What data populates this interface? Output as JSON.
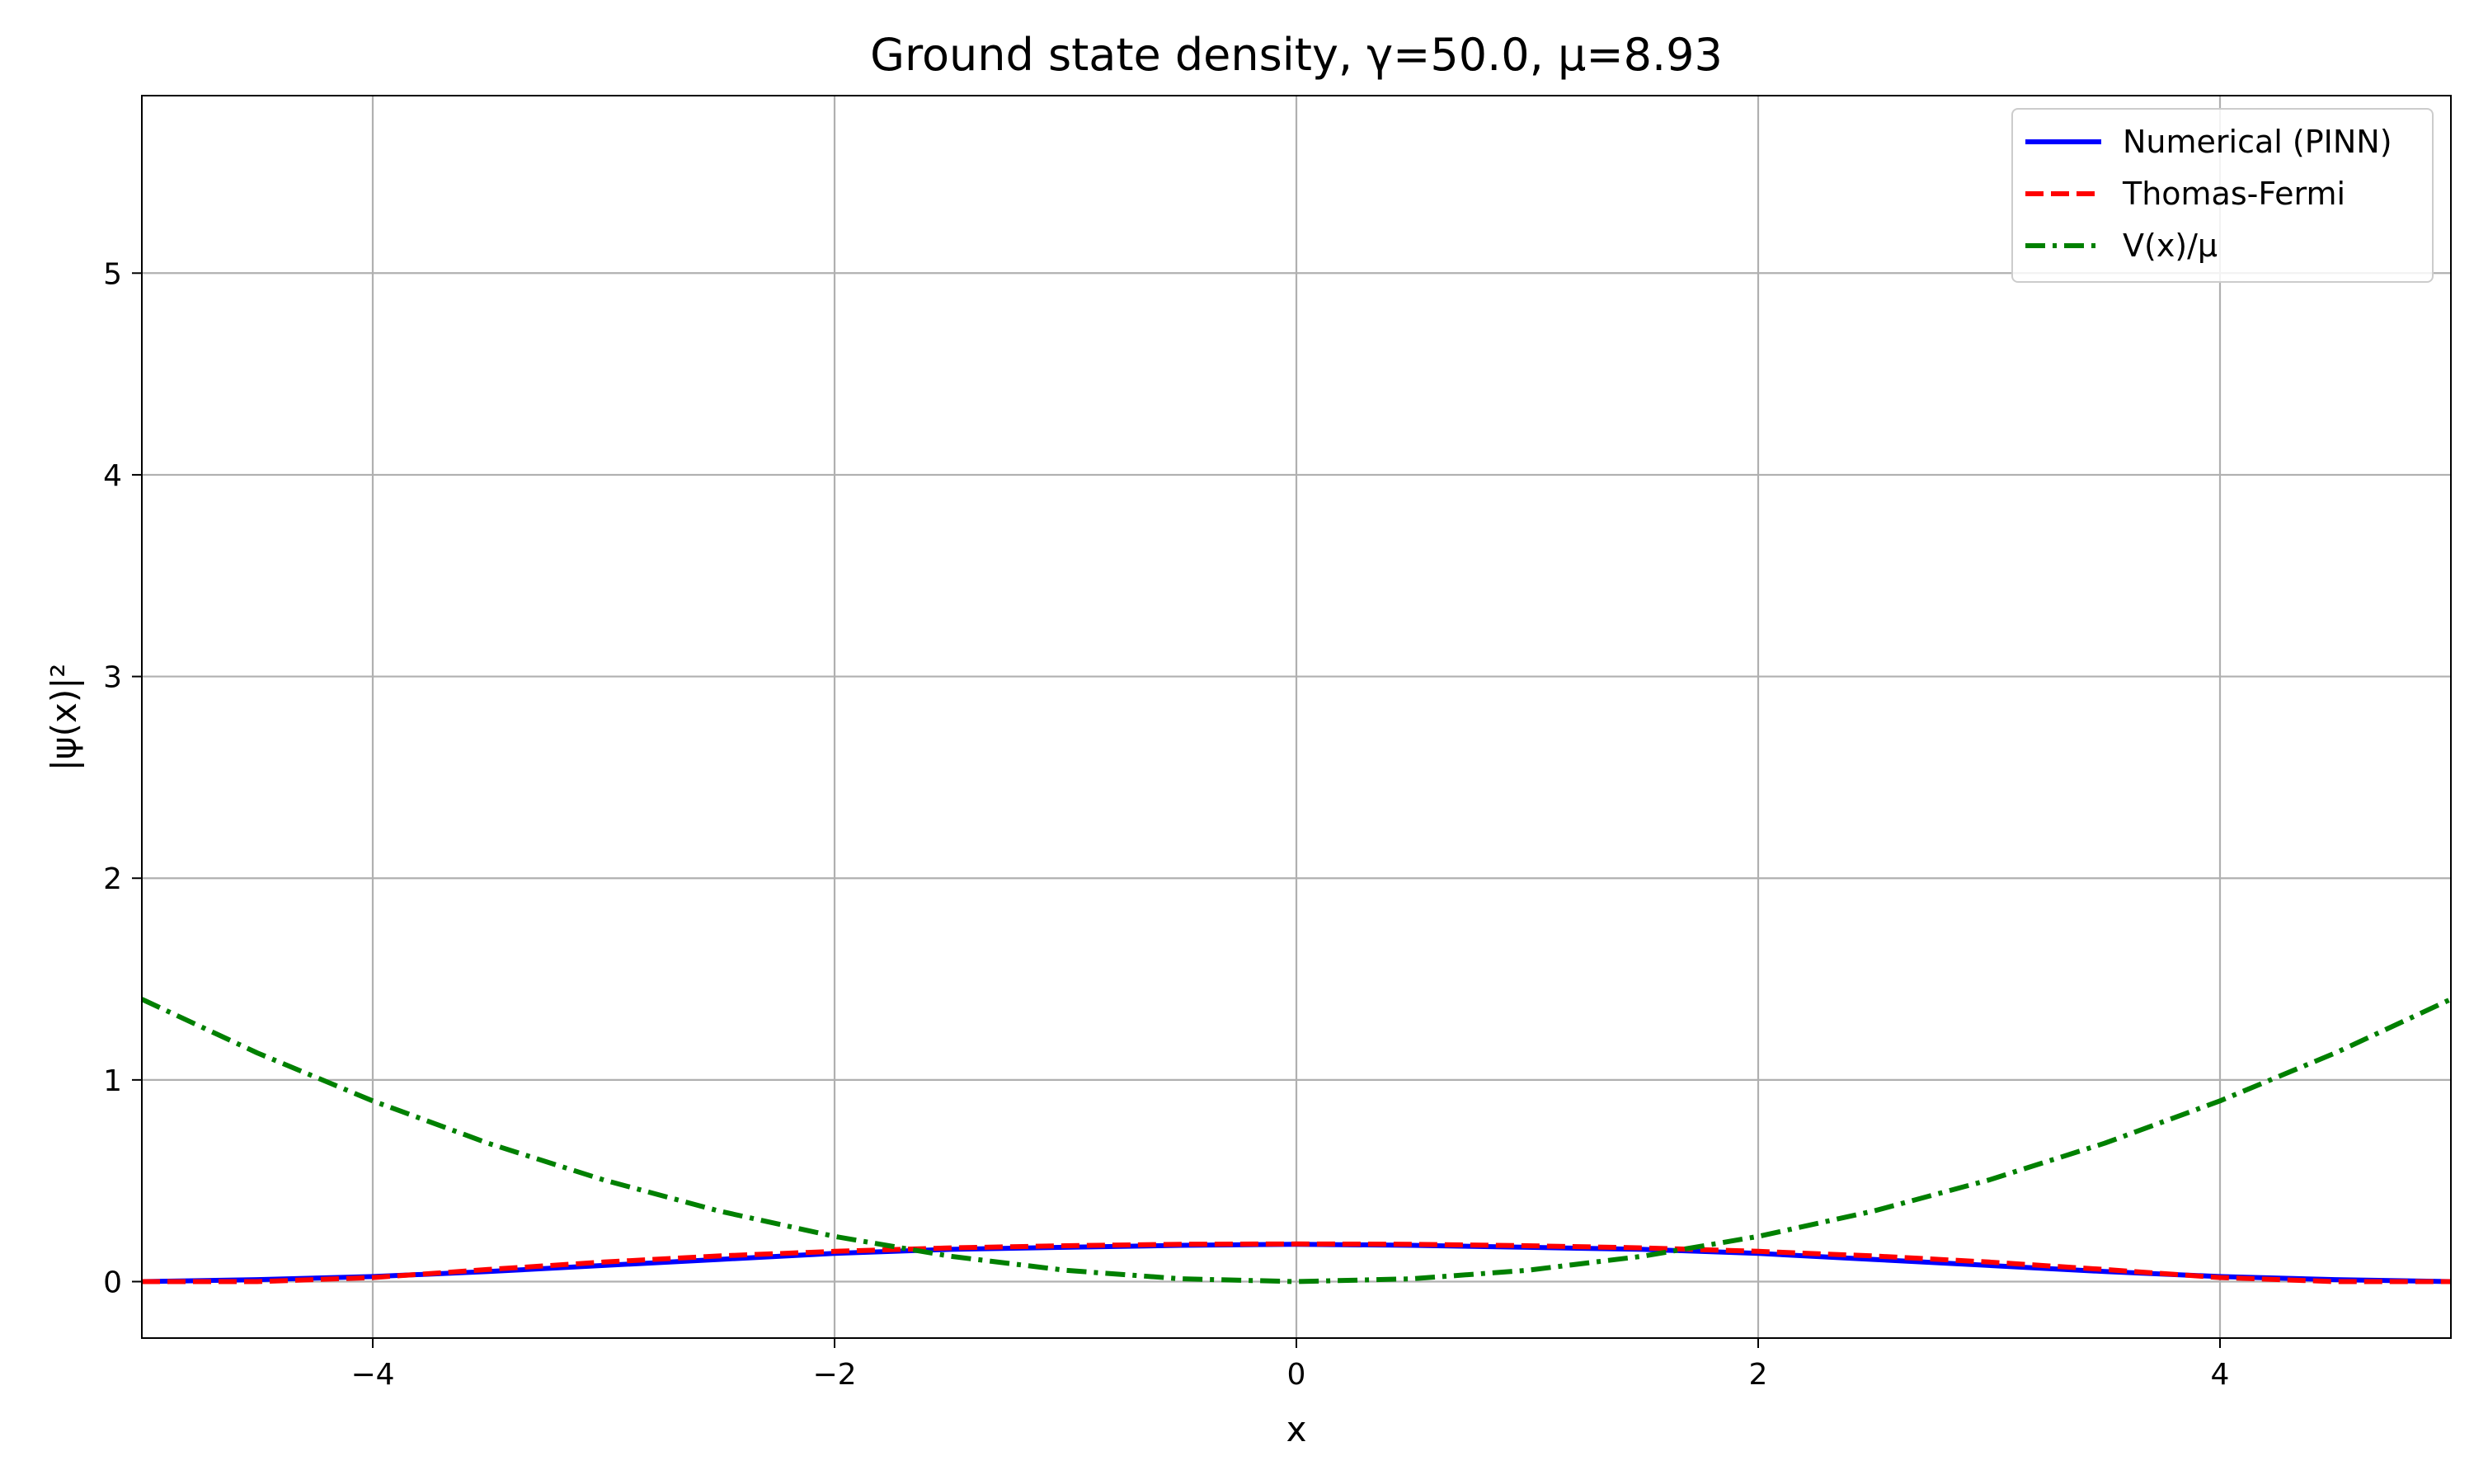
{
  "chart_data": {
    "type": "line",
    "title": "Ground state density, γ=50.0, μ=8.93",
    "xlabel": "x",
    "ylabel": "|ψ(x)|²",
    "xlim": [
      -5,
      5
    ],
    "ylim": [
      -0.28,
      5.88
    ],
    "x_ticks": [
      -4,
      -2,
      0,
      2,
      4
    ],
    "x_tick_labels": [
      "−4",
      "−2",
      "0",
      "2",
      "4"
    ],
    "y_ticks": [
      0,
      1,
      2,
      3,
      4,
      5
    ],
    "y_tick_labels": [
      "0",
      "1",
      "2",
      "3",
      "4",
      "5"
    ],
    "grid": true,
    "legend_position": "top-right",
    "x": [
      -5,
      -4.5,
      -4,
      -3.5,
      -3,
      -2.5,
      -2,
      -1.5,
      -1,
      -0.5,
      0,
      0.5,
      1,
      1.5,
      2,
      2.5,
      3,
      3.5,
      4,
      4.5,
      5
    ],
    "series": [
      {
        "name": "Numerical (PINN)",
        "color": "#0000ff",
        "style": "solid",
        "values": [
          0.0,
          0.01,
          0.025,
          0.05,
          0.08,
          0.11,
          0.14,
          0.16,
          0.17,
          0.18,
          0.185,
          0.18,
          0.17,
          0.16,
          0.14,
          0.11,
          0.08,
          0.05,
          0.025,
          0.01,
          0.0
        ]
      },
      {
        "name": "Thomas-Fermi",
        "color": "#ff0000",
        "style": "dashed",
        "values": [
          0.0,
          0.0,
          0.02,
          0.06,
          0.097,
          0.127,
          0.15,
          0.167,
          0.178,
          0.185,
          0.187,
          0.185,
          0.178,
          0.167,
          0.15,
          0.127,
          0.097,
          0.06,
          0.02,
          0.0,
          0.0
        ]
      },
      {
        "name": "V(x)/μ",
        "color": "#008000",
        "style": "dashdot",
        "values": [
          1.4,
          1.134,
          0.896,
          0.686,
          0.504,
          0.35,
          0.224,
          0.126,
          0.056,
          0.014,
          0.0,
          0.014,
          0.056,
          0.126,
          0.224,
          0.35,
          0.504,
          0.686,
          0.896,
          1.134,
          1.4
        ]
      }
    ]
  }
}
